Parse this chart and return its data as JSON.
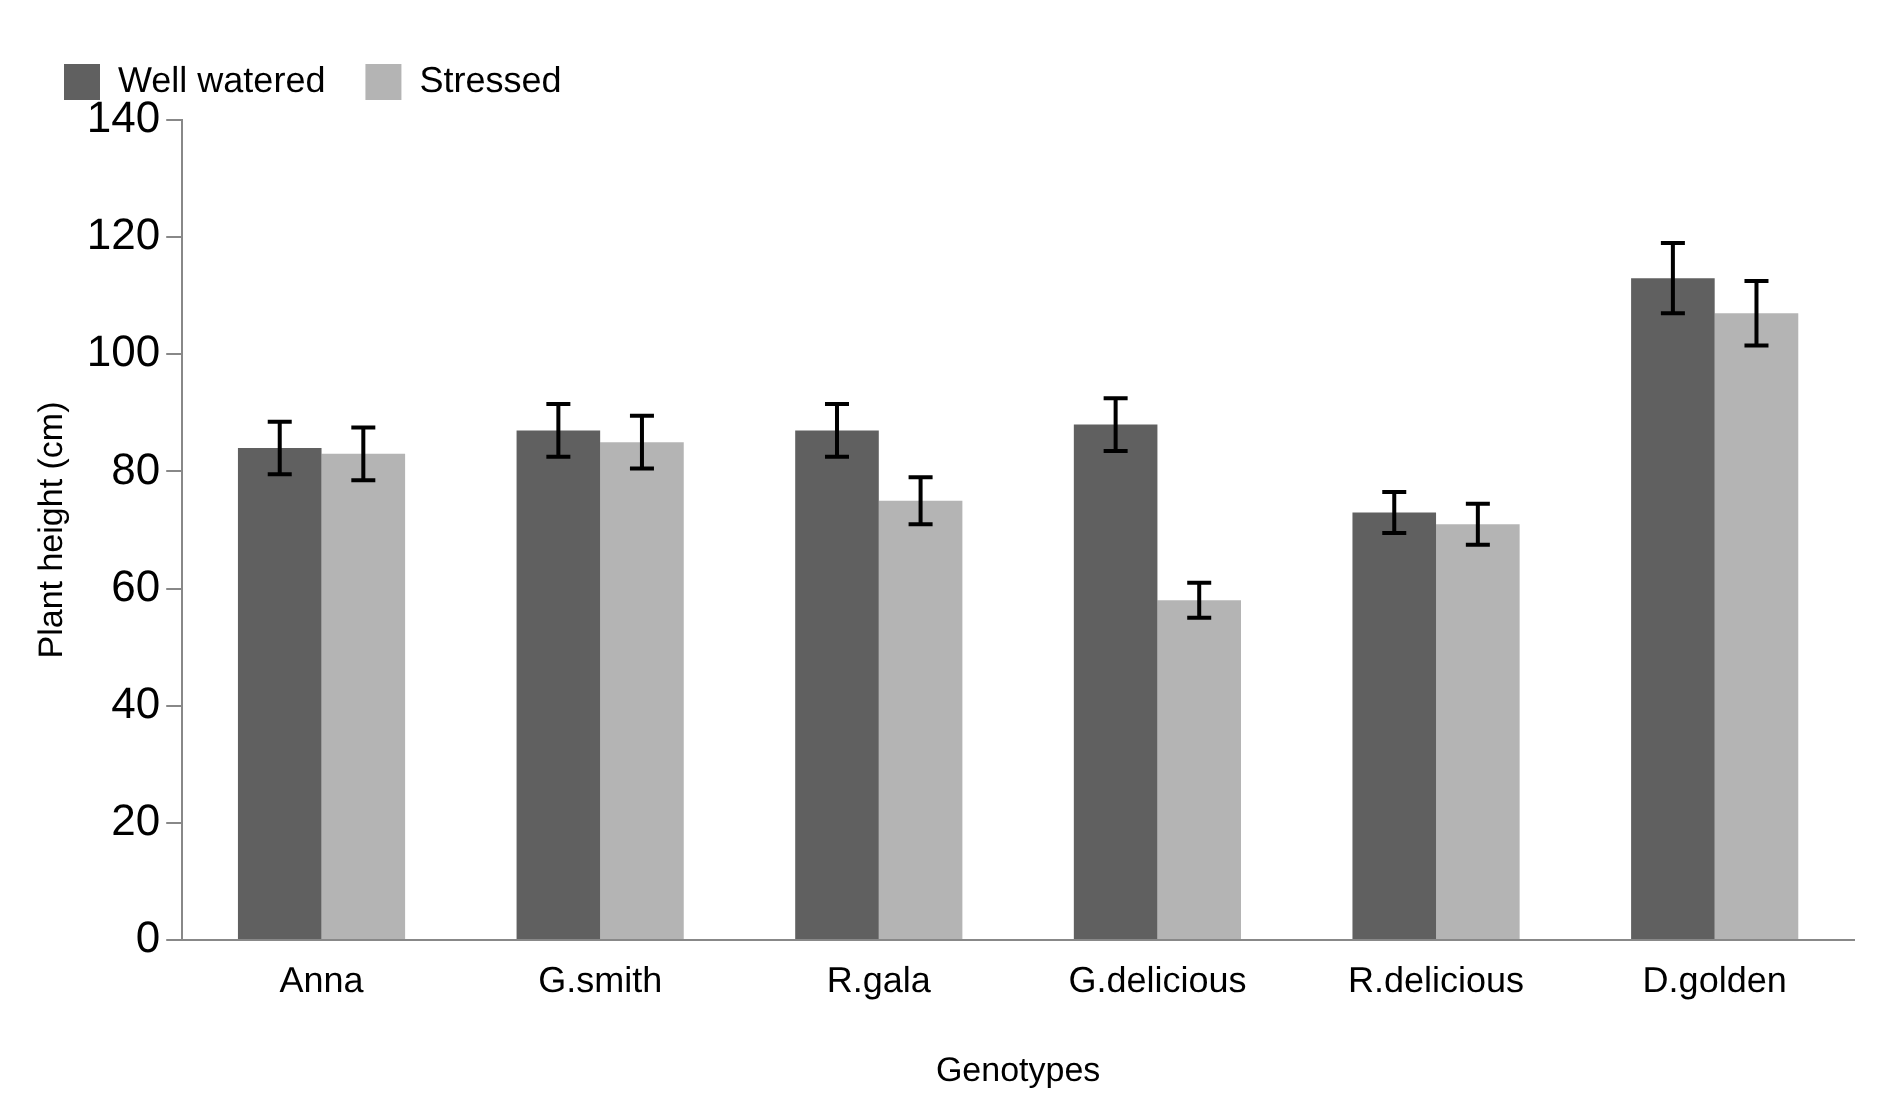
{
  "chart_data": {
    "type": "bar",
    "xlabel": "Genotypes",
    "ylabel": "Plant height (cm)",
    "categories": [
      "Anna",
      "G.smith",
      "R.gala",
      "G.delicious",
      "R.delicious",
      "D.golden"
    ],
    "series": [
      {
        "name": "Well watered",
        "color": "#606060",
        "values": [
          84,
          87,
          87,
          88,
          73,
          113
        ],
        "errors": [
          4.5,
          4.5,
          4.5,
          4.5,
          3.5,
          6
        ]
      },
      {
        "name": "Stressed",
        "color": "#b4b4b4",
        "values": [
          83,
          85,
          75,
          58,
          71,
          107
        ],
        "errors": [
          4.5,
          4.5,
          4,
          3,
          3.5,
          5.5
        ]
      }
    ],
    "ylim": [
      0,
      140
    ],
    "yticks": [
      0,
      20,
      40,
      60,
      80,
      100,
      120,
      140
    ],
    "grid": false,
    "legend": "top left"
  }
}
